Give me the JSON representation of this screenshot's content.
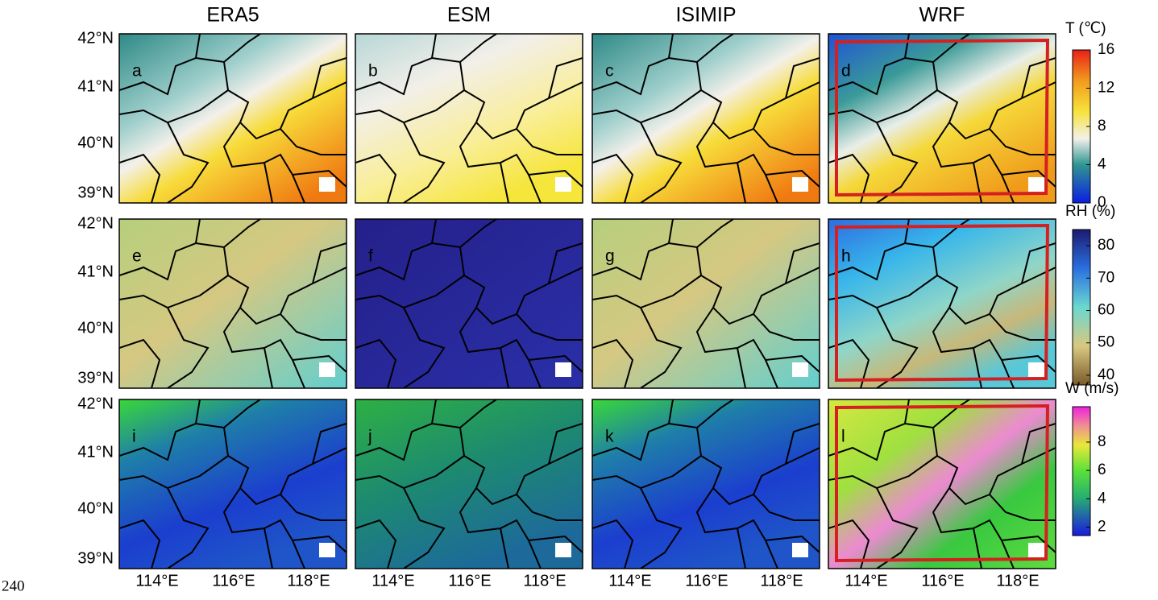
{
  "columns": [
    "ERA5",
    "ESM",
    "ISIMIP",
    "WRF"
  ],
  "panels": [
    [
      "a",
      "b",
      "c",
      "d"
    ],
    [
      "e",
      "f",
      "g",
      "h"
    ],
    [
      "i",
      "j",
      "k",
      "l"
    ]
  ],
  "lat_labels": [
    "42°N",
    "41°N",
    "40°N",
    "39°N"
  ],
  "lon_labels": [
    "114°E",
    "116°E",
    "118°E"
  ],
  "colorbars": [
    {
      "title": "T (℃)",
      "lim": [
        0,
        16
      ],
      "ticks": [
        0,
        4,
        8,
        12,
        16
      ]
    },
    {
      "title": "RH (%)",
      "lim": [
        37,
        85
      ],
      "ticks": [
        40,
        50,
        60,
        70,
        80
      ]
    },
    {
      "title": "W (m/s)",
      "lim": [
        1.4,
        10.5
      ],
      "ticks": [
        2,
        4,
        6,
        8
      ]
    }
  ],
  "page_number": "240"
}
